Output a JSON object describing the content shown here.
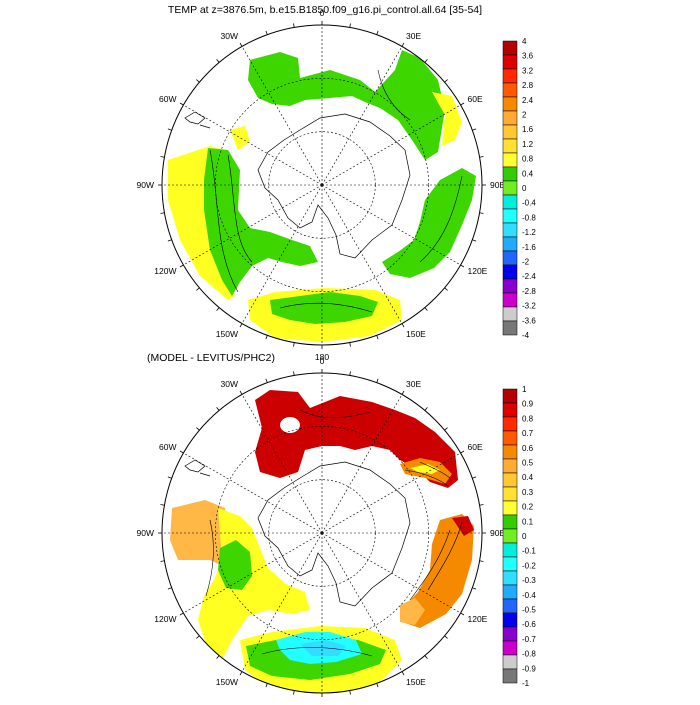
{
  "panels": [
    {
      "title": "TEMP at z=3876.5m, b.e15.B1850.f09_g16.pi_control.all.64 [35-54]",
      "lon_labels": [
        {
          "text": "0",
          "lon": 0
        },
        {
          "text": "30E",
          "lon": 30
        },
        {
          "text": "60E",
          "lon": 60
        },
        {
          "text": "90E",
          "lon": 90
        },
        {
          "text": "120E",
          "lon": 120
        },
        {
          "text": "150E",
          "lon": 150
        },
        {
          "text": "180",
          "lon": 180
        },
        {
          "text": "150W",
          "lon": 210
        },
        {
          "text": "120W",
          "lon": 240
        },
        {
          "text": "90W",
          "lon": 270
        },
        {
          "text": "60W",
          "lon": 300
        },
        {
          "text": "30W",
          "lon": 330
        }
      ],
      "colorbar": {
        "labels": [
          "4",
          "3.6",
          "3.2",
          "2.8",
          "2.4",
          "2",
          "1.6",
          "1.2",
          "0.8",
          "0.4",
          "0",
          "-0.4",
          "-0.8",
          "-1.2",
          "-1.6",
          "-2",
          "-2.4",
          "-2.8",
          "-3.2",
          "-3.6",
          "-4"
        ],
        "colors": [
          "#b40000",
          "#dd0000",
          "#ff2a00",
          "#ff5a00",
          "#f58a00",
          "#ffaa33",
          "#ffc833",
          "#ffe033",
          "#ffff33",
          "#33cc00",
          "#70ee22",
          "#00eedd",
          "#22ffff",
          "#33ddff",
          "#22aaff",
          "#2266ff",
          "#0000ee",
          "#8800cc",
          "#cc00cc",
          "#cccccc",
          "#777777"
        ]
      }
    },
    {
      "title": "(MODEL - LEVITUS/PHC2)",
      "lon_labels": [
        {
          "text": "0",
          "lon": 0
        },
        {
          "text": "30E",
          "lon": 30
        },
        {
          "text": "60E",
          "lon": 60
        },
        {
          "text": "90E",
          "lon": 90
        },
        {
          "text": "120E",
          "lon": 120
        },
        {
          "text": "150E",
          "lon": 150
        },
        {
          "text": "180",
          "lon": 180
        },
        {
          "text": "150W",
          "lon": 210
        },
        {
          "text": "120W",
          "lon": 240
        },
        {
          "text": "90W",
          "lon": 270
        },
        {
          "text": "60W",
          "lon": 300
        },
        {
          "text": "30W",
          "lon": 330
        }
      ],
      "colorbar": {
        "labels": [
          "1",
          "0.9",
          "0.8",
          "0.7",
          "0.6",
          "0.5",
          "0.4",
          "0.3",
          "0.2",
          "0.1",
          "0",
          "-0.1",
          "-0.2",
          "-0.3",
          "-0.4",
          "-0.5",
          "-0.6",
          "-0.7",
          "-0.8",
          "-0.9",
          "-1"
        ],
        "colors": [
          "#b40000",
          "#dd0000",
          "#ff2a00",
          "#ff5a00",
          "#f58a00",
          "#ffaa33",
          "#ffc833",
          "#ffe033",
          "#ffff33",
          "#33cc00",
          "#70ee22",
          "#00eedd",
          "#22ffff",
          "#33ddff",
          "#22aaff",
          "#2266ff",
          "#0000ee",
          "#8800cc",
          "#cc00cc",
          "#cccccc",
          "#777777"
        ]
      }
    }
  ],
  "palette": {
    "green": "#3dd600",
    "yellow": "#ffff22",
    "dark_red": "#cc0000",
    "orange": "#f58a00",
    "light_orange": "#ffb845",
    "cyan": "#22ffff",
    "sky": "#33ddff"
  }
}
